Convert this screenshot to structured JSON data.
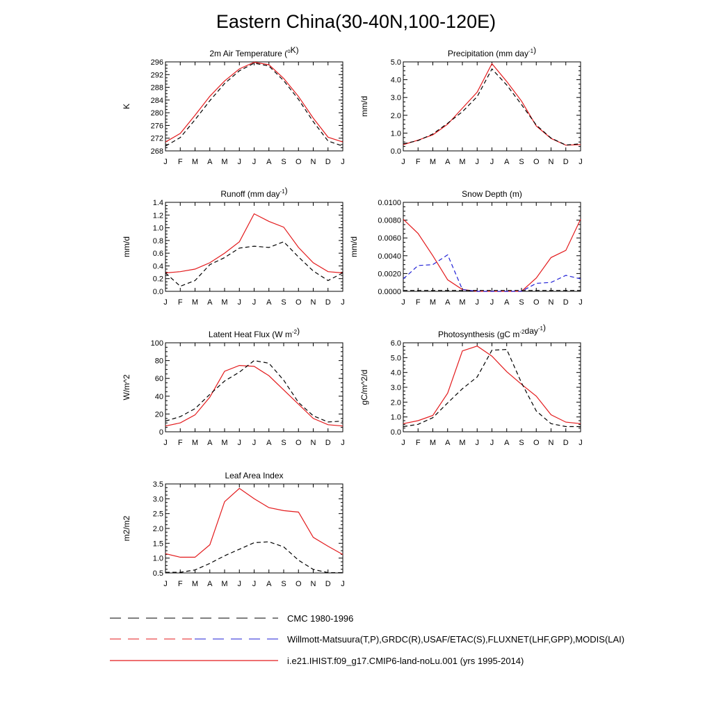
{
  "title": "Eastern China(30-40N,100-120E)",
  "months": [
    "J",
    "F",
    "M",
    "A",
    "M",
    "J",
    "J",
    "A",
    "S",
    "O",
    "N",
    "D",
    "J"
  ],
  "colors": {
    "model": "#e31a1c",
    "obs": "#000000",
    "obs_alt": "#1f1fd6"
  },
  "legend": [
    {
      "label": "CMC 1980-1996",
      "style": "dash-black"
    },
    {
      "label": "Willmott-Matsuura(T,P),GRDC(R),USAF/ETAC(S),FLUXNET(LHF,GPP),MODIS(LAI)",
      "style": "dash-mixed"
    },
    {
      "label": "i.e21.IHIST.f09_g17.CMIP6-land-noLu.001 (yrs 1995-2014)",
      "style": "solid-red"
    }
  ],
  "chart_data": [
    {
      "type": "line",
      "title": "2m Air Temperature (°K)",
      "ylabel": "K",
      "ylim": [
        268,
        296
      ],
      "yticks": [
        268,
        272,
        276,
        280,
        284,
        288,
        292,
        296
      ],
      "tick_labels": [
        "268",
        "272",
        "276",
        "280",
        "284",
        "288",
        "292",
        "296"
      ],
      "series": [
        {
          "style": "solid",
          "color": "#e31a1c",
          "values": [
            270.8,
            273.5,
            279.2,
            285.2,
            290.0,
            293.8,
            295.9,
            295.1,
            290.8,
            285.1,
            278.3,
            272.3,
            270.8
          ]
        },
        {
          "style": "dashed",
          "color": "#000000",
          "values": [
            269.5,
            272.2,
            277.8,
            283.8,
            289.2,
            293.2,
            295.6,
            294.7,
            290.1,
            284.2,
            277.2,
            271.1,
            269.5
          ]
        }
      ]
    },
    {
      "type": "line",
      "title": "Precipitation (mm day⁻¹)",
      "ylabel": "mm/d",
      "ylim": [
        0,
        5
      ],
      "yticks": [
        0,
        1,
        2,
        3,
        4,
        5
      ],
      "tick_labels": [
        "0.0",
        "1.0",
        "2.0",
        "3.0",
        "4.0",
        "5.0"
      ],
      "series": [
        {
          "style": "solid",
          "color": "#e31a1c",
          "values": [
            0.35,
            0.6,
            0.9,
            1.5,
            2.4,
            3.3,
            4.9,
            3.9,
            2.8,
            1.4,
            0.7,
            0.32,
            0.35
          ]
        },
        {
          "style": "dashed",
          "color": "#000000",
          "values": [
            0.4,
            0.58,
            0.95,
            1.55,
            2.2,
            3.05,
            4.6,
            3.7,
            2.6,
            1.45,
            0.72,
            0.33,
            0.4
          ]
        }
      ]
    },
    {
      "type": "line",
      "title": "Runoff (mm day⁻¹)",
      "ylabel": "mm/d",
      "ylim": [
        0,
        1.4
      ],
      "yticks": [
        0,
        0.2,
        0.4,
        0.6,
        0.8,
        1.0,
        1.2,
        1.4
      ],
      "tick_labels": [
        "0.0",
        "0.2",
        "0.4",
        "0.6",
        "0.8",
        "1.0",
        "1.2",
        "1.4"
      ],
      "series": [
        {
          "style": "solid",
          "color": "#e31a1c",
          "values": [
            0.29,
            0.31,
            0.35,
            0.45,
            0.6,
            0.78,
            1.22,
            1.1,
            1.01,
            0.69,
            0.45,
            0.31,
            0.29
          ]
        },
        {
          "style": "dashed",
          "color": "#000000",
          "values": [
            0.29,
            0.08,
            0.17,
            0.42,
            0.53,
            0.68,
            0.71,
            0.69,
            0.78,
            0.54,
            0.32,
            0.17,
            0.29
          ]
        }
      ]
    },
    {
      "type": "line",
      "title": "Snow Depth (m)",
      "ylabel": "mm/d",
      "ylim": [
        0,
        0.01
      ],
      "yticks": [
        0,
        0.002,
        0.004,
        0.006,
        0.008,
        0.01
      ],
      "tick_labels": [
        "0.0000",
        "0.0020",
        "0.0040",
        "0.0060",
        "0.0080",
        "0.0100"
      ],
      "series": [
        {
          "style": "solid",
          "color": "#e31a1c",
          "values": [
            0.0081,
            0.0065,
            0.004,
            0.0013,
            0.0002,
            0.0,
            0.0,
            0.0,
            0.0,
            0.0015,
            0.0038,
            0.0046,
            0.0081
          ]
        },
        {
          "style": "dashed",
          "color": "#1f1fd6",
          "values": [
            0.0014,
            0.0029,
            0.003,
            0.0041,
            0.0002,
            0.0,
            0.0,
            0.0,
            0.0,
            0.0009,
            0.001,
            0.0018,
            0.0014
          ]
        },
        {
          "style": "dashed",
          "color": "#000000",
          "values": [
            0.0001,
            0.0001,
            0.0001,
            0.0001,
            0.0001,
            0.0001,
            0.0001,
            0.0001,
            0.0001,
            0.0001,
            0.0001,
            0.0001,
            0.0001
          ]
        }
      ]
    },
    {
      "type": "line",
      "title": "Latent Heat Flux (W m⁻²)",
      "ylabel": "W/m^2",
      "ylim": [
        0,
        100
      ],
      "yticks": [
        0,
        20,
        40,
        60,
        80,
        100
      ],
      "tick_labels": [
        "0",
        "20",
        "40",
        "60",
        "80",
        "100"
      ],
      "series": [
        {
          "style": "solid",
          "color": "#e31a1c",
          "values": [
            6.5,
            10,
            19,
            39,
            68,
            74.5,
            73.5,
            63,
            47,
            31,
            15,
            8,
            6.5
          ]
        },
        {
          "style": "dashed",
          "color": "#000000",
          "values": [
            12,
            17,
            26,
            42,
            57,
            67,
            80,
            77,
            58,
            33,
            18,
            11,
            12
          ]
        }
      ]
    },
    {
      "type": "line",
      "title": "Photosynthesis (gC m⁻²day⁻¹)",
      "ylabel": "gC/m^2/d",
      "ylim": [
        0,
        6
      ],
      "yticks": [
        0,
        1,
        2,
        3,
        4,
        5,
        6
      ],
      "tick_labels": [
        "0.0",
        "1.0",
        "2.0",
        "3.0",
        "4.0",
        "5.0",
        "6.0"
      ],
      "series": [
        {
          "style": "solid",
          "color": "#e31a1c",
          "values": [
            0.55,
            0.75,
            1.1,
            2.6,
            5.45,
            5.78,
            5.1,
            4.05,
            3.2,
            2.4,
            1.15,
            0.65,
            0.55
          ]
        },
        {
          "style": "dashed",
          "color": "#000000",
          "values": [
            0.35,
            0.5,
            0.95,
            1.95,
            2.9,
            3.7,
            5.5,
            5.55,
            3.3,
            1.4,
            0.55,
            0.35,
            0.35
          ]
        }
      ]
    },
    {
      "type": "line",
      "title": "Leaf Area Index",
      "ylabel": "m2/m2",
      "ylim": [
        0.5,
        3.5
      ],
      "yticks": [
        0.5,
        1.0,
        1.5,
        2.0,
        2.5,
        3.0,
        3.5
      ],
      "tick_labels": [
        "0.5",
        "1.0",
        "1.5",
        "2.0",
        "2.5",
        "3.0",
        "3.5"
      ],
      "series": [
        {
          "style": "solid",
          "color": "#e31a1c",
          "values": [
            1.15,
            1.03,
            1.03,
            1.45,
            2.9,
            3.35,
            3.0,
            2.7,
            2.6,
            2.55,
            1.7,
            1.4,
            1.12
          ]
        },
        {
          "style": "dashed",
          "color": "#000000",
          "values": [
            0.52,
            0.52,
            0.6,
            0.82,
            1.08,
            1.3,
            1.52,
            1.55,
            1.38,
            0.93,
            0.62,
            0.51,
            0.51
          ]
        }
      ]
    }
  ]
}
